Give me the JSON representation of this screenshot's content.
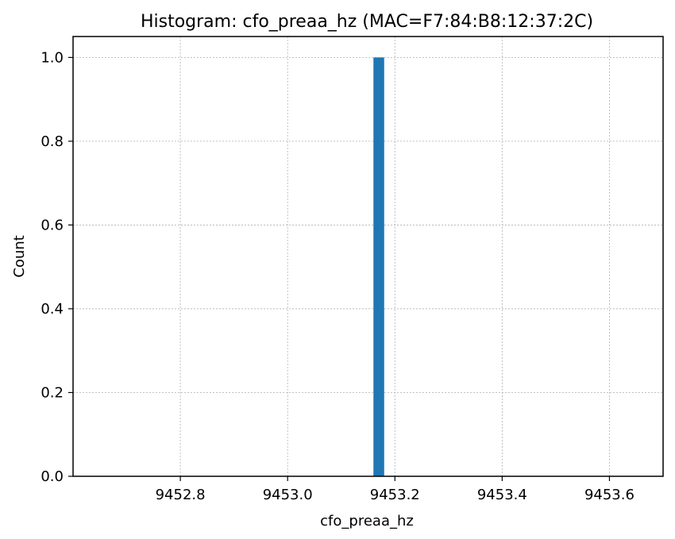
{
  "chart_data": {
    "type": "bar",
    "title": "Histogram: cfo_preaa_hz (MAC=F7:84:B8:12:37:2C)",
    "xlabel": "cfo_preaa_hz",
    "ylabel": "Count",
    "xlim": [
      9452.6,
      9453.7
    ],
    "ylim": [
      0,
      1.05
    ],
    "x_ticks": [
      9452.8,
      9453.0,
      9453.2,
      9453.4,
      9453.6
    ],
    "x_tick_labels": [
      "9452.8",
      "9453.0",
      "9453.2",
      "9453.4",
      "9453.6"
    ],
    "y_ticks": [
      0.0,
      0.2,
      0.4,
      0.6,
      0.8,
      1.0
    ],
    "y_tick_labels": [
      "0.0",
      "0.2",
      "0.4",
      "0.6",
      "0.8",
      "1.0"
    ],
    "grid": true,
    "bars": [
      {
        "x_start": 9453.16,
        "x_end": 9453.18,
        "count": 1.0
      }
    ],
    "colors": {
      "bar": "#1f77b4",
      "grid": "#b0b0b0",
      "axes": "#000000"
    }
  }
}
